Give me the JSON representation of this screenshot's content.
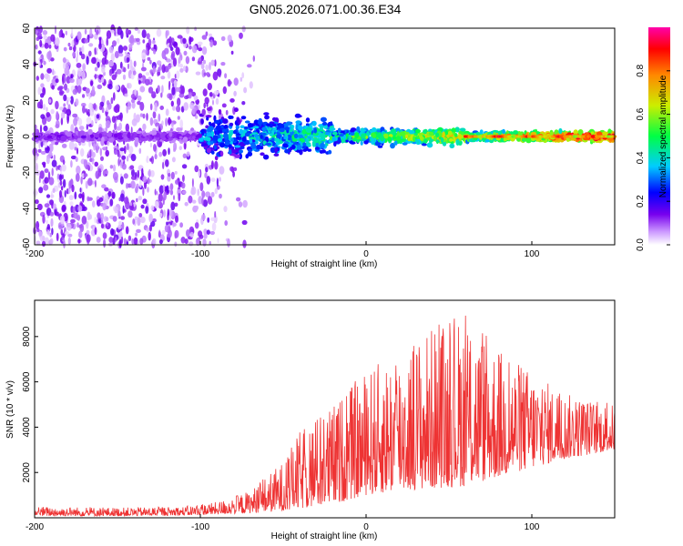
{
  "chart_data": [
    {
      "type": "heatmap",
      "title": "GN05.2026.071.00.36.E34",
      "xlabel": "Height of straight line (km)",
      "ylabel": "Frequency (Hz)",
      "xlim": [
        -200,
        150
      ],
      "ylim": [
        -60,
        60
      ],
      "x_ticks": [
        -200,
        -100,
        0,
        100
      ],
      "x_tick_labels": [
        "-200",
        "-100",
        "0",
        "100"
      ],
      "y_ticks": [
        -60,
        -40,
        -20,
        0,
        20,
        40,
        60
      ],
      "y_tick_labels": [
        "-60",
        "-40",
        "-20",
        "0",
        "20",
        "40",
        "60"
      ],
      "colorbar": {
        "label": "Normalized spectral amplitude",
        "range": [
          0.0,
          1.0
        ],
        "ticks": [
          0.0,
          0.2,
          0.4,
          0.6,
          0.8
        ],
        "tick_labels": [
          "0.0",
          "0.2",
          "0.4",
          "0.6",
          "0.8"
        ],
        "colormap": [
          "#ffffff",
          "#cc99ff",
          "#7700ee",
          "#0000ff",
          "#00ccff",
          "#00ff44",
          "#ccee00",
          "#ff8800",
          "#ff0000",
          "#ff00aa"
        ]
      },
      "description_values": {
        "signal_band_center_hz": 0,
        "signal_start_km": -100,
        "max_amplitude_region_km": [
          80,
          150
        ]
      }
    },
    {
      "type": "line",
      "xlabel": "Height of straight line (km)",
      "ylabel": "SNR (10 * v/v)",
      "xlim": [
        -200,
        150
      ],
      "ylim": [
        0,
        9600
      ],
      "x_ticks": [
        -200,
        -100,
        0,
        100
      ],
      "x_tick_labels": [
        "-200",
        "-100",
        "0",
        "100"
      ],
      "y_ticks": [
        2000,
        4000,
        6000,
        8000
      ],
      "y_tick_labels": [
        "2000",
        "4000",
        "6000",
        "8000"
      ],
      "series": [
        {
          "name": "SNR",
          "color": "#ee3333",
          "envelope": [
            {
              "x": -200,
              "lo": 80,
              "hi": 500
            },
            {
              "x": -150,
              "lo": 80,
              "hi": 450
            },
            {
              "x": -110,
              "lo": 100,
              "hi": 500
            },
            {
              "x": -90,
              "lo": 150,
              "hi": 700
            },
            {
              "x": -70,
              "lo": 200,
              "hi": 1200
            },
            {
              "x": -50,
              "lo": 300,
              "hi": 2500
            },
            {
              "x": -40,
              "lo": 400,
              "hi": 3800
            },
            {
              "x": -30,
              "lo": 500,
              "hi": 4500
            },
            {
              "x": -20,
              "lo": 600,
              "hi": 5000
            },
            {
              "x": -10,
              "lo": 800,
              "hi": 5800
            },
            {
              "x": 0,
              "lo": 1000,
              "hi": 6500
            },
            {
              "x": 20,
              "lo": 1200,
              "hi": 7500
            },
            {
              "x": 40,
              "lo": 1300,
              "hi": 8500
            },
            {
              "x": 60,
              "lo": 1400,
              "hi": 9000
            },
            {
              "x": 80,
              "lo": 1800,
              "hi": 7500
            },
            {
              "x": 100,
              "lo": 2200,
              "hi": 6500
            },
            {
              "x": 120,
              "lo": 2600,
              "hi": 5500
            },
            {
              "x": 150,
              "lo": 3000,
              "hi": 5000
            }
          ]
        }
      ]
    }
  ]
}
